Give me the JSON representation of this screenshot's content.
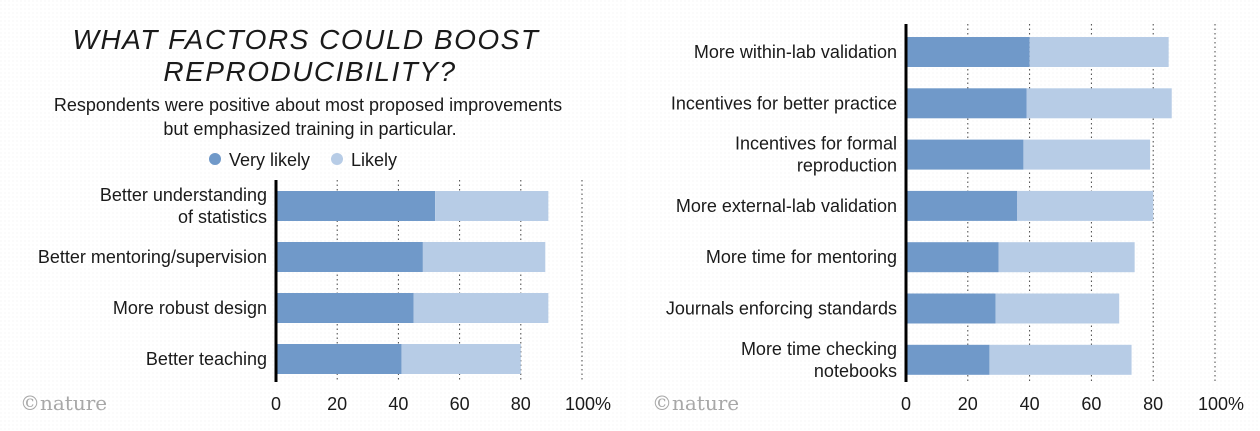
{
  "chart_data": {
    "type": "bar",
    "stacked": true,
    "orientation": "horizontal",
    "title": "WHAT FACTORS COULD BOOST REPRODUCIBILITY?",
    "title_lines": [
      "WHAT FACTORS COULD BOOST",
      "REPRODUCIBILITY?"
    ],
    "subtitle_lines": [
      "Respondents were positive about most proposed improvements",
      "but emphasized training in particular."
    ],
    "legend": [
      {
        "name": "Very likely",
        "color": "#7099c9"
      },
      {
        "name": "Likely",
        "color": "#b7cce6"
      }
    ],
    "legend_placement": "top",
    "xlim": [
      0,
      100
    ],
    "x_ticks": [
      "0",
      "20",
      "40",
      "60",
      "80",
      "100%"
    ],
    "grid": "vertical dotted",
    "source_logo": "©nature",
    "panels": [
      {
        "categories": [
          [
            "Better understanding",
            "of statistics"
          ],
          [
            "Better mentoring/supervision"
          ],
          [
            "More robust design"
          ],
          [
            "Better teaching"
          ]
        ],
        "series": [
          {
            "name": "Very likely",
            "values": [
              52,
              48,
              45,
              41
            ]
          },
          {
            "name": "Likely",
            "values": [
              37,
              40,
              44,
              39
            ]
          }
        ]
      },
      {
        "categories": [
          [
            "More within-lab validation"
          ],
          [
            "Incentives for better practice"
          ],
          [
            "Incentives for formal",
            "reproduction"
          ],
          [
            "More external-lab validation"
          ],
          [
            "More time for mentoring"
          ],
          [
            "Journals enforcing standards"
          ],
          [
            "More time checking",
            "notebooks"
          ]
        ],
        "series": [
          {
            "name": "Very likely",
            "values": [
              40,
              39,
              38,
              36,
              30,
              29,
              27
            ]
          },
          {
            "name": "Likely",
            "values": [
              45,
              47,
              41,
              44,
              44,
              40,
              46
            ]
          }
        ]
      }
    ]
  }
}
